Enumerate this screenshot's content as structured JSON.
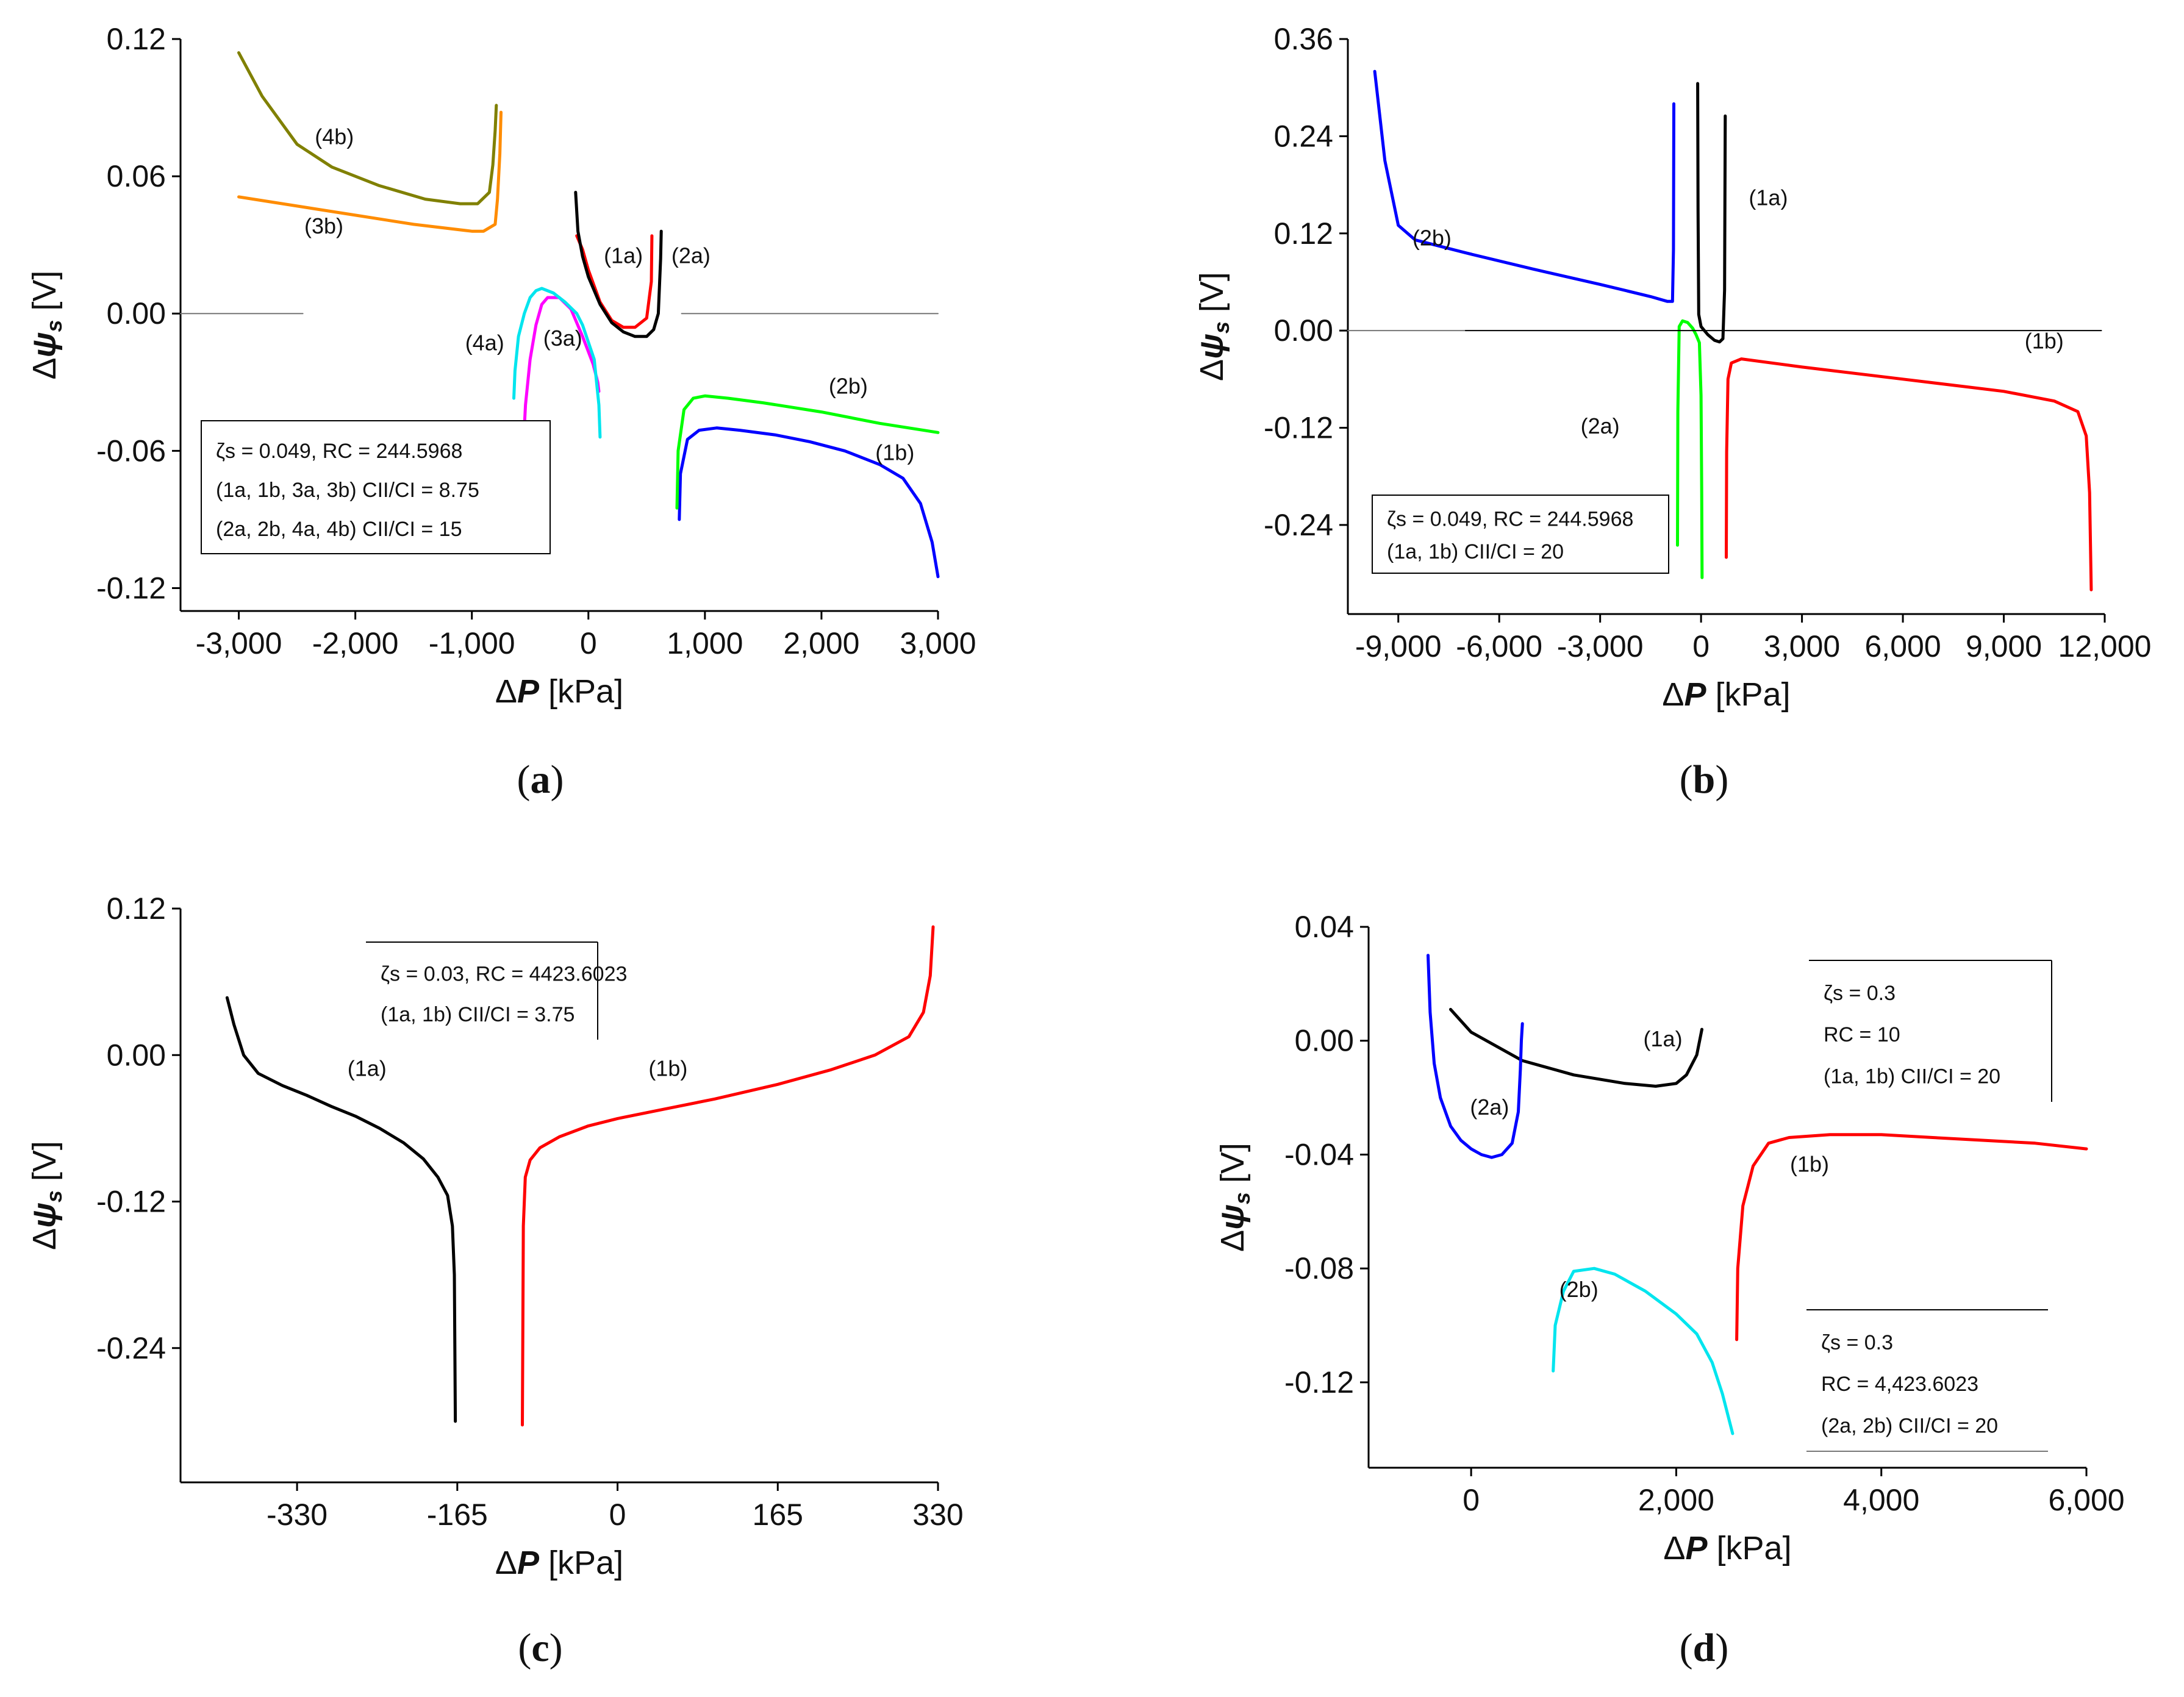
{
  "chart_data": [
    {
      "panel": "a",
      "caption": "a",
      "type": "line",
      "xlabel": "ΔP [kPa]",
      "ylabel": "Δψs [V]",
      "xlim": [
        -3500,
        3000
      ],
      "ylim": [
        -0.13,
        0.12
      ],
      "xticks": [
        -3000,
        -2000,
        -1000,
        0,
        1000,
        2000,
        3000
      ],
      "xtick_labels": [
        "-3,000",
        "-2,000",
        "-1,000",
        "0",
        "1,000",
        "2,000",
        "3,000"
      ],
      "yticks": [
        -0.12,
        -0.06,
        0.0,
        0.06,
        0.12
      ],
      "ytick_labels": [
        "-0.12",
        "-0.06",
        "0.00",
        "0.06",
        "0.12"
      ],
      "legend": [
        "ζs = 0.049, RC = 244.5968",
        "(1a, 1b, 3a, 3b) CII/CI = 8.75",
        "(2a, 2b, 4a, 4b) CII/CI = 15"
      ],
      "series": [
        {
          "name": "(1a)",
          "color": "#ff0000",
          "x": [
            -100,
            -50,
            0,
            100,
            200,
            300,
            400,
            500,
            540,
            545
          ],
          "y": [
            0.034,
            0.028,
            0.019,
            0.005,
            -0.003,
            -0.006,
            -0.006,
            -0.002,
            0.014,
            0.034
          ]
        },
        {
          "name": "(2a)",
          "color": "#000000",
          "x": [
            -110,
            -90,
            -50,
            0,
            100,
            200,
            300,
            400,
            500,
            560,
            600,
            620,
            625
          ],
          "y": [
            0.053,
            0.036,
            0.025,
            0.016,
            0.004,
            -0.004,
            -0.008,
            -0.01,
            -0.01,
            -0.007,
            0.0,
            0.024,
            0.036
          ]
        },
        {
          "name": "(3a)",
          "color": "#ff00ff",
          "x": [
            -550,
            -540,
            -500,
            -450,
            -400,
            -350,
            -250,
            -150,
            -50,
            40,
            80,
            90
          ],
          "y": [
            -0.05,
            -0.04,
            -0.02,
            -0.005,
            0.004,
            0.007,
            0.007,
            0.002,
            -0.01,
            -0.022,
            -0.03,
            -0.034
          ]
        },
        {
          "name": "(4a)",
          "color": "#00e5ee",
          "x": [
            -640,
            -630,
            -600,
            -550,
            -500,
            -450,
            -400,
            -300,
            -200,
            -100,
            -50,
            50,
            90,
            100
          ],
          "y": [
            -0.037,
            -0.025,
            -0.01,
            0.0,
            0.007,
            0.01,
            0.011,
            0.009,
            0.005,
            0.0,
            -0.005,
            -0.02,
            -0.04,
            -0.054
          ]
        },
        {
          "name": "(1b)",
          "color": "#0000ff",
          "x": [
            780,
            790,
            850,
            950,
            1100,
            1300,
            1600,
            1900,
            2200,
            2500,
            2700,
            2850,
            2950,
            3000
          ],
          "y": [
            -0.09,
            -0.07,
            -0.055,
            -0.051,
            -0.05,
            -0.051,
            -0.053,
            -0.056,
            -0.06,
            -0.066,
            -0.072,
            -0.083,
            -0.1,
            -0.115
          ]
        },
        {
          "name": "(2b)",
          "color": "#00ff00",
          "x": [
            760,
            770,
            820,
            900,
            1000,
            1200,
            1500,
            2000,
            2500,
            3000
          ],
          "y": [
            -0.085,
            -0.06,
            -0.042,
            -0.037,
            -0.036,
            -0.037,
            -0.039,
            -0.043,
            -0.048,
            -0.052
          ]
        },
        {
          "name": "(3b)",
          "color": "#ff8c00",
          "x": [
            -3000,
            -2500,
            -2000,
            -1500,
            -1000,
            -900,
            -800,
            -780,
            -760,
            -750
          ],
          "y": [
            0.051,
            0.047,
            0.043,
            0.039,
            0.036,
            0.036,
            0.039,
            0.05,
            0.07,
            0.088
          ]
        },
        {
          "name": "(4b)",
          "color": "#808000",
          "x": [
            -3000,
            -2800,
            -2500,
            -2200,
            -1800,
            -1400,
            -1100,
            -950,
            -850,
            -820,
            -800,
            -790
          ],
          "y": [
            0.114,
            0.095,
            0.074,
            0.064,
            0.056,
            0.05,
            0.048,
            0.048,
            0.053,
            0.065,
            0.08,
            0.091
          ]
        },
        {
          "name": "zero-left",
          "color": "#777777",
          "x": [
            -3500,
            -2450
          ],
          "y": [
            0,
            0
          ]
        },
        {
          "name": "zero-right",
          "color": "#777777",
          "x": [
            800,
            3000
          ],
          "y": [
            0,
            0
          ]
        }
      ],
      "curve_labels": [
        {
          "text": "(1a)",
          "x": 300,
          "y": 0.022
        },
        {
          "text": "(2a)",
          "x": 880,
          "y": 0.022
        },
        {
          "text": "(3a)",
          "x": -220,
          "y": -0.014
        },
        {
          "text": "(4a)",
          "x": -890,
          "y": -0.016
        },
        {
          "text": "(1b)",
          "x": 2630,
          "y": -0.064
        },
        {
          "text": "(2b)",
          "x": 2230,
          "y": -0.035
        },
        {
          "text": "(3b)",
          "x": -2270,
          "y": 0.035
        },
        {
          "text": "(4b)",
          "x": -2180,
          "y": 0.074
        }
      ]
    },
    {
      "panel": "b",
      "caption": "b",
      "type": "line",
      "xlabel": "ΔP [kPa]",
      "ylabel": "Δψs [V]",
      "xlim": [
        -10500,
        12000
      ],
      "ylim": [
        -0.35,
        0.36
      ],
      "xticks": [
        -9000,
        -6000,
        -3000,
        0,
        3000,
        6000,
        9000,
        12000
      ],
      "xtick_labels": [
        "-9,000",
        "-6,000",
        "-3,000",
        "0",
        "3,000",
        "6,000",
        "9,000",
        "12,000"
      ],
      "yticks": [
        -0.24,
        -0.12,
        0.0,
        0.12,
        0.24,
        0.36
      ],
      "ytick_labels": [
        "-0.24",
        "-0.12",
        "0.00",
        "0.12",
        "0.24",
        "0.36"
      ],
      "legend": [
        "ζs = 0.049, RC = 244.5968",
        "(1a, 1b) CII/CI = 20"
      ],
      "series": [
        {
          "name": "(2b)",
          "color": "#0000ff",
          "x": [
            -9700,
            -9400,
            -9000,
            -8500,
            -7000,
            -5000,
            -3000,
            -1500,
            -1000,
            -850,
            -820,
            -810
          ],
          "y": [
            0.32,
            0.21,
            0.13,
            0.112,
            0.096,
            0.076,
            0.057,
            0.042,
            0.036,
            0.036,
            0.1,
            0.28
          ]
        },
        {
          "name": "(1a)",
          "color": "#000000",
          "x": [
            -100,
            -90,
            -70,
            0,
            200,
            400,
            550,
            650,
            700,
            720
          ],
          "y": [
            0.305,
            0.15,
            0.02,
            0.005,
            -0.005,
            -0.012,
            -0.014,
            -0.01,
            0.05,
            0.265
          ]
        },
        {
          "name": "(2a)",
          "color": "#00ff00",
          "x": [
            -700,
            -690,
            -650,
            -550,
            -400,
            -250,
            -150,
            -50,
            0,
            20,
            30
          ],
          "y": [
            -0.265,
            -0.1,
            0.005,
            0.012,
            0.01,
            0.003,
            -0.005,
            -0.015,
            -0.08,
            -0.2,
            -0.305
          ]
        },
        {
          "name": "(1b)",
          "color": "#ff0000",
          "x": [
            750,
            760,
            800,
            900,
            1200,
            3000,
            6000,
            9000,
            10500,
            11200,
            11450,
            11550,
            11600
          ],
          "y": [
            -0.28,
            -0.15,
            -0.06,
            -0.04,
            -0.035,
            -0.045,
            -0.06,
            -0.075,
            -0.087,
            -0.1,
            -0.13,
            -0.2,
            -0.32
          ]
        },
        {
          "name": "zero-left",
          "color": "#777777",
          "x": [
            -10500,
            -7000
          ],
          "y": [
            0,
            0
          ]
        },
        {
          "name": "zero-right",
          "color": "#000000",
          "x": [
            -7000,
            11900
          ],
          "y": [
            0,
            0
          ]
        }
      ],
      "curve_labels": [
        {
          "text": "(1a)",
          "x": 2000,
          "y": 0.155
        },
        {
          "text": "(1b)",
          "x": 10200,
          "y": -0.022
        },
        {
          "text": "(2a)",
          "x": -3000,
          "y": -0.127
        },
        {
          "text": "(2b)",
          "x": -8000,
          "y": 0.105
        }
      ]
    },
    {
      "panel": "c",
      "caption": "c",
      "type": "line",
      "xlabel": "ΔP [kPa]",
      "ylabel": "Δψs [V]",
      "xlim": [
        -450,
        330
      ],
      "ylim": [
        -0.35,
        0.12
      ],
      "xticks": [
        -330,
        -165,
        0,
        165,
        330
      ],
      "xtick_labels": [
        "-330",
        "-165",
        "0",
        "165",
        "330"
      ],
      "yticks": [
        -0.24,
        -0.12,
        0.0,
        0.12
      ],
      "ytick_labels": [
        "-0.24",
        "-0.12",
        "0.00",
        "0.12"
      ],
      "legend": [
        "ζs = 0.03, RC = 4423.6023",
        "(1a, 1b) CII/CI = 3.75"
      ],
      "series": [
        {
          "name": "(1a)",
          "color": "#000000",
          "x": [
            -402,
            -395,
            -385,
            -370,
            -345,
            -320,
            -295,
            -270,
            -245,
            -220,
            -200,
            -185,
            -175,
            -170,
            -168,
            -167
          ],
          "y": [
            0.047,
            0.025,
            0.0,
            -0.015,
            -0.025,
            -0.033,
            -0.042,
            -0.05,
            -0.06,
            -0.072,
            -0.085,
            -0.1,
            -0.115,
            -0.14,
            -0.18,
            -0.3
          ]
        },
        {
          "name": "(1b)",
          "color": "#ff0000",
          "x": [
            -98,
            -97,
            -95,
            -90,
            -80,
            -60,
            -30,
            0,
            50,
            100,
            165,
            220,
            265,
            300,
            315,
            322,
            325
          ],
          "y": [
            -0.303,
            -0.14,
            -0.1,
            -0.086,
            -0.076,
            -0.067,
            -0.058,
            -0.052,
            -0.044,
            -0.036,
            -0.024,
            -0.012,
            0.0,
            0.015,
            0.035,
            0.065,
            0.105
          ]
        }
      ],
      "curve_labels": [
        {
          "text": "(1a)",
          "x": -258,
          "y": -0.017
        },
        {
          "text": "(1b)",
          "x": 52,
          "y": -0.017
        }
      ]
    },
    {
      "panel": "d",
      "caption": "d",
      "type": "line",
      "xlabel": "ΔP [kPa]",
      "ylabel": "Δψs [V]",
      "xlim": [
        -1000,
        6000
      ],
      "ylim": [
        -0.15,
        0.04
      ],
      "xticks": [
        0,
        2000,
        4000,
        6000
      ],
      "xtick_labels": [
        "0",
        "2,000",
        "4,000",
        "6,000"
      ],
      "yticks": [
        -0.12,
        -0.08,
        -0.04,
        0.0,
        0.04
      ],
      "ytick_labels": [
        "-0.12",
        "-0.08",
        "-0.04",
        "0.00",
        "0.04"
      ],
      "legend": [
        "ζs = 0.3",
        "RC = 10",
        "(1a, 1b) CII/CI = 20"
      ],
      "legend2": [
        "ζs = 0.3",
        "RC = 4,423.6023",
        "(2a, 2b) CII/CI = 20"
      ],
      "series": [
        {
          "name": "(1a)",
          "color": "#000000",
          "x": [
            -200,
            0,
            500,
            1000,
            1500,
            1800,
            2000,
            2100,
            2200,
            2250
          ],
          "y": [
            0.011,
            0.003,
            -0.007,
            -0.012,
            -0.015,
            -0.016,
            -0.015,
            -0.012,
            -0.005,
            0.004
          ]
        },
        {
          "name": "(2a)",
          "color": "#0000ff",
          "x": [
            -420,
            -400,
            -360,
            -300,
            -200,
            -100,
            0,
            100,
            200,
            300,
            400,
            460,
            480,
            490,
            500
          ],
          "y": [
            0.03,
            0.01,
            -0.008,
            -0.02,
            -0.03,
            -0.035,
            -0.038,
            -0.04,
            -0.041,
            -0.04,
            -0.036,
            -0.025,
            -0.01,
            0.0,
            0.006
          ]
        },
        {
          "name": "(1b)",
          "color": "#ff0000",
          "x": [
            2590,
            2600,
            2650,
            2750,
            2900,
            3100,
            3500,
            4000,
            4500,
            5000,
            5500,
            6000
          ],
          "y": [
            -0.105,
            -0.08,
            -0.058,
            -0.044,
            -0.036,
            -0.034,
            -0.033,
            -0.033,
            -0.034,
            -0.035,
            -0.036,
            -0.038
          ]
        },
        {
          "name": "(2b)",
          "color": "#00e5ee",
          "x": [
            800,
            820,
            900,
            1000,
            1200,
            1400,
            1700,
            2000,
            2200,
            2350,
            2450,
            2550
          ],
          "y": [
            -0.116,
            -0.1,
            -0.088,
            -0.081,
            -0.08,
            -0.082,
            -0.088,
            -0.096,
            -0.103,
            -0.113,
            -0.124,
            -0.138
          ]
        }
      ],
      "curve_labels": [
        {
          "text": "(1a)",
          "x": 1870,
          "y": -0.002
        },
        {
          "text": "(2a)",
          "x": 180,
          "y": -0.026
        },
        {
          "text": "(1b)",
          "x": 3300,
          "y": -0.046
        },
        {
          "text": "(2b)",
          "x": 1050,
          "y": -0.09
        }
      ]
    }
  ]
}
